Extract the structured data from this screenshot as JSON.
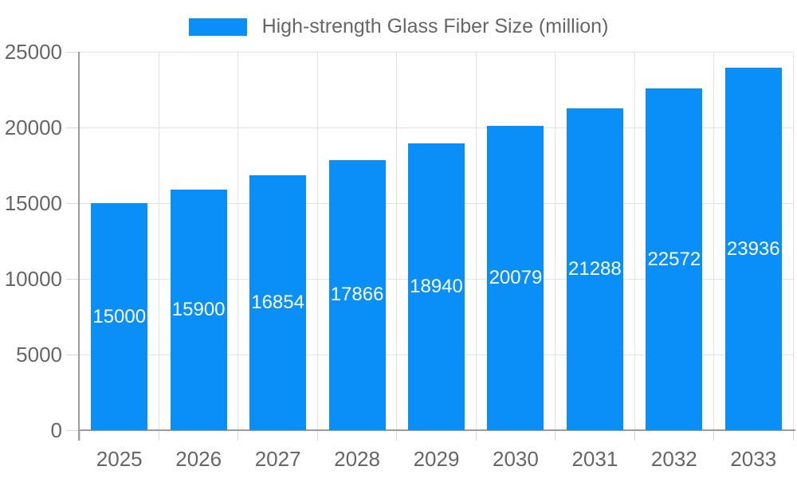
{
  "legend": {
    "label": "High-strength Glass Fiber Size (million)"
  },
  "chart_data": {
    "type": "bar",
    "title": "",
    "xlabel": "",
    "ylabel": "",
    "categories": [
      "2025",
      "2026",
      "2027",
      "2028",
      "2029",
      "2030",
      "2031",
      "2032",
      "2033"
    ],
    "series": [
      {
        "name": "High-strength Glass Fiber Size (million)",
        "values": [
          15000,
          15900,
          16854,
          17866,
          18940,
          20079,
          21288,
          22572,
          23936
        ],
        "color": "#0A8FF9"
      }
    ],
    "ylim": [
      0,
      25000
    ],
    "yticks": [
      0,
      5000,
      10000,
      15000,
      20000,
      25000
    ],
    "grid": "horizontal-and-vertical",
    "legend_position": "top-center",
    "value_label_position": "inside-middle"
  },
  "colors": {
    "bar": "#0A8FF9",
    "grid": "#E2E2E2",
    "tick": "#D8D8D8",
    "axis": "#9C9C9C",
    "axis_label": "#666666",
    "value_label": "#FFFFFF",
    "background": "#FFFFFF"
  }
}
